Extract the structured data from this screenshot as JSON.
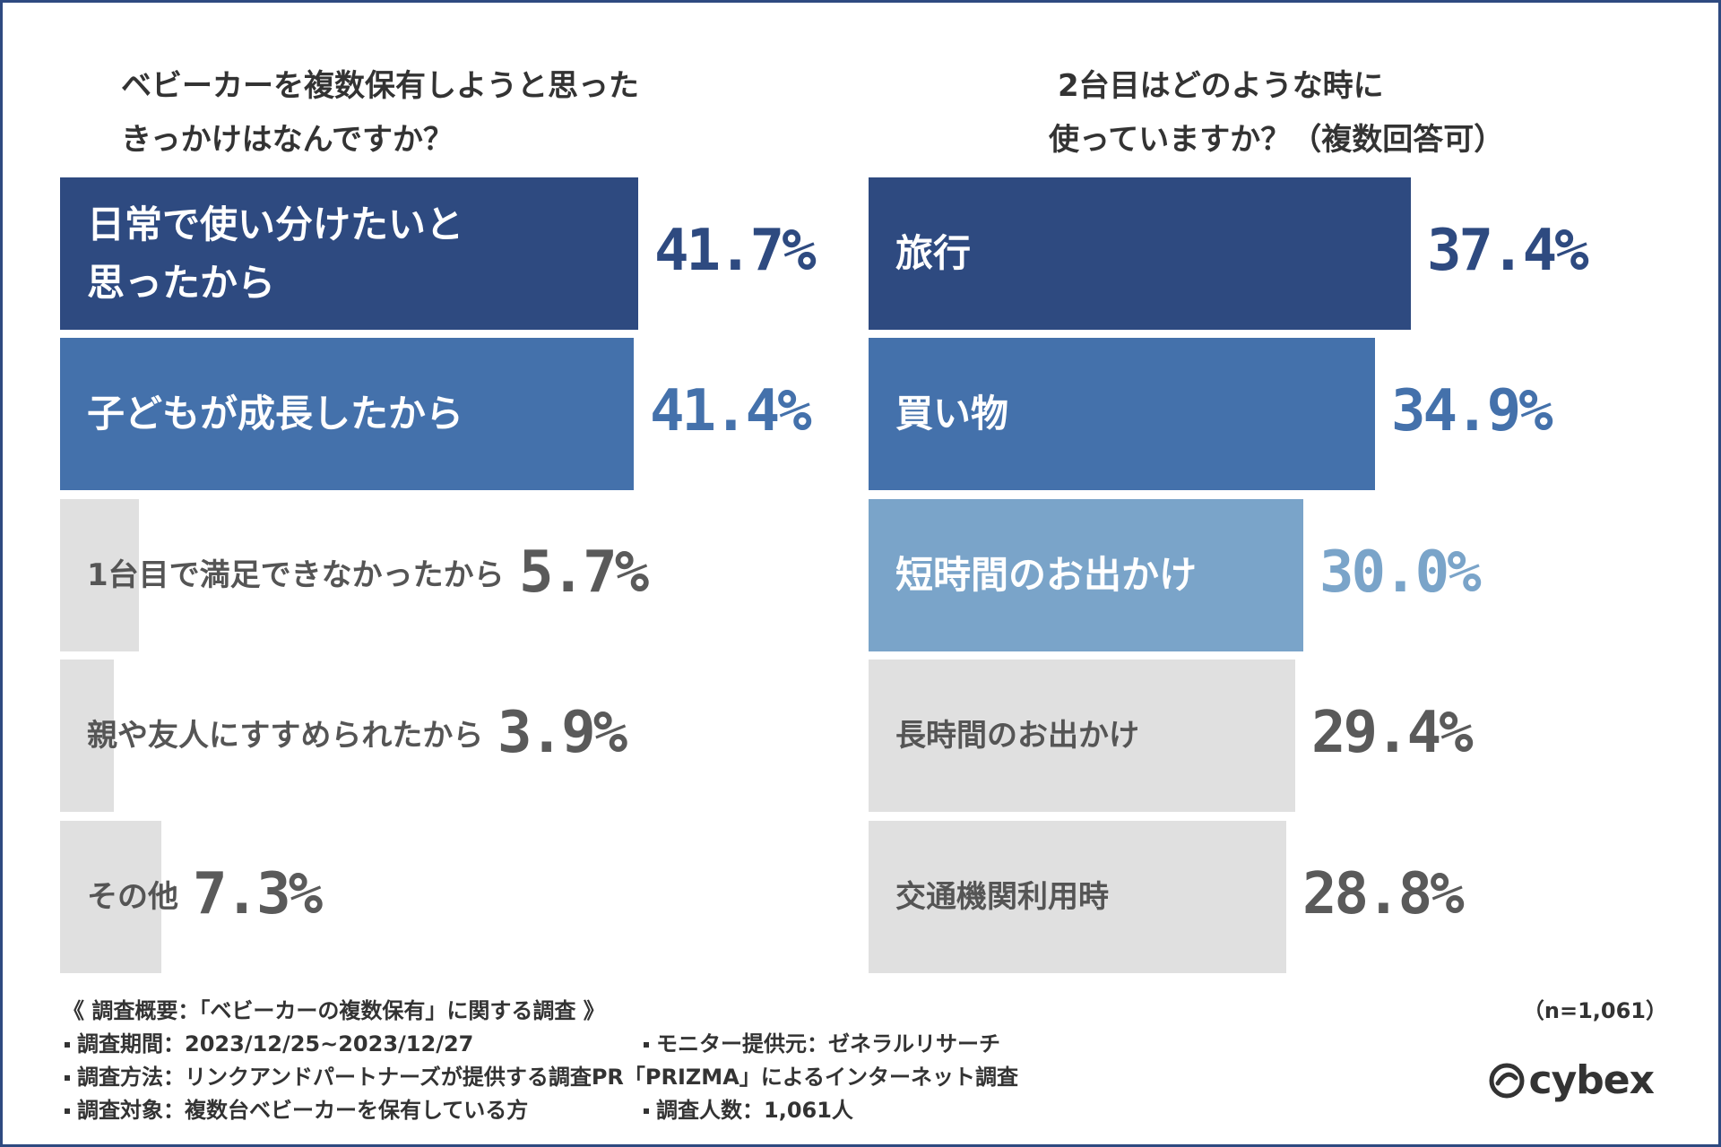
{
  "left": {
    "title_line1": "ベビーカーを複数保有しようと思った",
    "title_line2": "きっかけはなんですか？"
  },
  "right": {
    "title_line1": "2台目はどのような時に",
    "title_line2": "使っていますか？（複数回答可）"
  },
  "colors": {
    "dark": "#2e4a80",
    "medium": "#4471ab",
    "light": "#7aa4c9",
    "gray": "#e0e0e0",
    "gray_text": "#555555",
    "gray_value": "#5a5a5a"
  },
  "chart_data": [
    {
      "type": "bar",
      "orientation": "horizontal",
      "title": "ベビーカーを複数保有しようと思ったきっかけはなんですか？",
      "categories": [
        "日常で使い分けたいと思ったから",
        "子どもが成長したから",
        "1台目で満足できなかったから",
        "親や友人にすすめられたから",
        "その他"
      ],
      "values": [
        41.7,
        41.4,
        5.7,
        3.9,
        7.3
      ],
      "value_labels": [
        "41.7%",
        "41.4%",
        "5.7%",
        "3.9%",
        "7.3%"
      ],
      "display_lines": [
        [
          "日常で使い分けたいと",
          "思ったから"
        ],
        [
          "子どもが成長したから"
        ],
        [
          "1台目で満足できなかったから"
        ],
        [
          "親や友人にすすめられたから"
        ],
        [
          "その他"
        ]
      ],
      "unit": "%"
    },
    {
      "type": "bar",
      "orientation": "horizontal",
      "title": "2台目はどのような時に使っていますか？（複数回答可）",
      "categories": [
        "旅行",
        "買い物",
        "短時間のお出かけ",
        "長時間のお出かけ",
        "交通機関利用時"
      ],
      "values": [
        37.4,
        34.9,
        30.0,
        29.4,
        28.8
      ],
      "value_labels": [
        "37.4%",
        "34.9%",
        "30.0%",
        "29.4%",
        "28.8%"
      ],
      "display_lines": [
        [
          "旅行"
        ],
        [
          "買い物"
        ],
        [
          "短時間のお出かけ"
        ],
        [
          "長時間のお出かけ"
        ],
        [
          "交通機関利用時"
        ]
      ],
      "unit": "%"
    }
  ],
  "footer": {
    "overview": "《 調査概要：「ベビーカーの複数保有」に関する調査 》",
    "n": "（n=1,061）",
    "period": "調査期間：2023/12/25~2023/12/27",
    "provider": "モニター提供元：ゼネラルリサーチ",
    "method": "調査方法：リンクアンドパートナーズが提供する調査PR「PRIZMA」によるインターネット調査",
    "target": "調査対象：複数台ベビーカーを保有している方",
    "count": "調査人数：1,061人",
    "logo_text": "cybex"
  }
}
